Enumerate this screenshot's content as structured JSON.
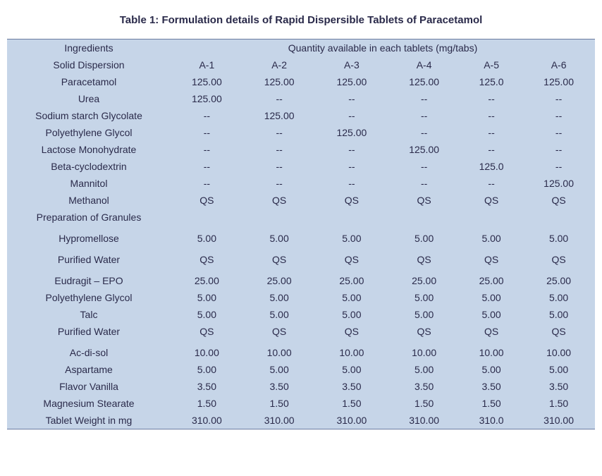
{
  "title": "Table 1: Formulation details of Rapid Dispersible Tablets of Paracetamol",
  "headers": {
    "ingredients": "Ingredients",
    "quantity_header": "Quantity available in each tablets (mg/tabs)"
  },
  "columns": [
    "A-1",
    "A-2",
    "A-3",
    "A-4",
    "A-5",
    "A-6"
  ],
  "rows": [
    {
      "label": "Solid Dispersion",
      "vals": [
        "A-1",
        "A-2",
        "A-3",
        "A-4",
        "A-5",
        "A-6"
      ],
      "is_col_header": true
    },
    {
      "label": "Paracetamol",
      "vals": [
        "125.00",
        "125.00",
        "125.00",
        "125.00",
        "125.0",
        "125.00"
      ]
    },
    {
      "label": "Urea",
      "vals": [
        "125.00",
        "--",
        "--",
        "--",
        "--",
        "--"
      ]
    },
    {
      "label": "Sodium starch Glycolate",
      "vals": [
        "--",
        "125.00",
        "--",
        "--",
        "--",
        "--"
      ]
    },
    {
      "label": "Polyethylene Glycol",
      "vals": [
        "--",
        "--",
        "125.00",
        "--",
        "--",
        "--"
      ]
    },
    {
      "label": "Lactose Monohydrate",
      "vals": [
        "--",
        "--",
        "--",
        "125.00",
        "--",
        "--"
      ]
    },
    {
      "label": "Beta-cyclodextrin",
      "vals": [
        "--",
        "--",
        "--",
        "--",
        "125.0",
        "--"
      ]
    },
    {
      "label": "Mannitol",
      "vals": [
        "--",
        "--",
        "--",
        "--",
        "--",
        "125.00"
      ]
    },
    {
      "label": "Methanol",
      "vals": [
        "QS",
        "QS",
        "QS",
        "QS",
        "QS",
        "QS"
      ]
    },
    {
      "label": "Preparation of Granules",
      "vals": [
        "",
        "",
        "",
        "",
        "",
        ""
      ],
      "section": true
    },
    {
      "label": "Hypromellose",
      "vals": [
        "5.00",
        "5.00",
        "5.00",
        "5.00",
        "5.00",
        "5.00"
      ],
      "pad": true
    },
    {
      "label": "Purified Water",
      "vals": [
        "QS",
        "QS",
        "QS",
        "QS",
        "QS",
        "QS"
      ],
      "pad": true
    },
    {
      "label": "Eudragit – EPO",
      "vals": [
        "25.00",
        "25.00",
        "25.00",
        "25.00",
        "25.00",
        "25.00"
      ],
      "pad": true
    },
    {
      "label": "Polyethylene Glycol",
      "vals": [
        "5.00",
        "5.00",
        "5.00",
        "5.00",
        "5.00",
        "5.00"
      ]
    },
    {
      "label": "Talc",
      "vals": [
        "5.00",
        "5.00",
        "5.00",
        "5.00",
        "5.00",
        "5.00"
      ]
    },
    {
      "label": "Purified Water",
      "vals": [
        "QS",
        "QS",
        "QS",
        "QS",
        "QS",
        "QS"
      ]
    },
    {
      "label": "Ac-di-sol",
      "vals": [
        "10.00",
        "10.00",
        "10.00",
        "10.00",
        "10.00",
        "10.00"
      ],
      "pad": true
    },
    {
      "label": "Aspartame",
      "vals": [
        "5.00",
        "5.00",
        "5.00",
        "5.00",
        "5.00",
        "5.00"
      ]
    },
    {
      "label": "Flavor Vanilla",
      "vals": [
        "3.50",
        "3.50",
        "3.50",
        "3.50",
        "3.50",
        "3.50"
      ]
    },
    {
      "label": "Magnesium Stearate",
      "vals": [
        "1.50",
        "1.50",
        "1.50",
        "1.50",
        "1.50",
        "1.50"
      ]
    },
    {
      "label": "Tablet Weight in mg",
      "vals": [
        "310.00",
        "310.00",
        "310.00",
        "310.00",
        "310.0",
        "310.00"
      ],
      "last": true
    }
  ],
  "style": {
    "background_color": "#c6d5e8",
    "border_color": "#6a7ba0",
    "text_color": "#2a2a4a",
    "font_size": 14,
    "title_font_size": 15
  }
}
